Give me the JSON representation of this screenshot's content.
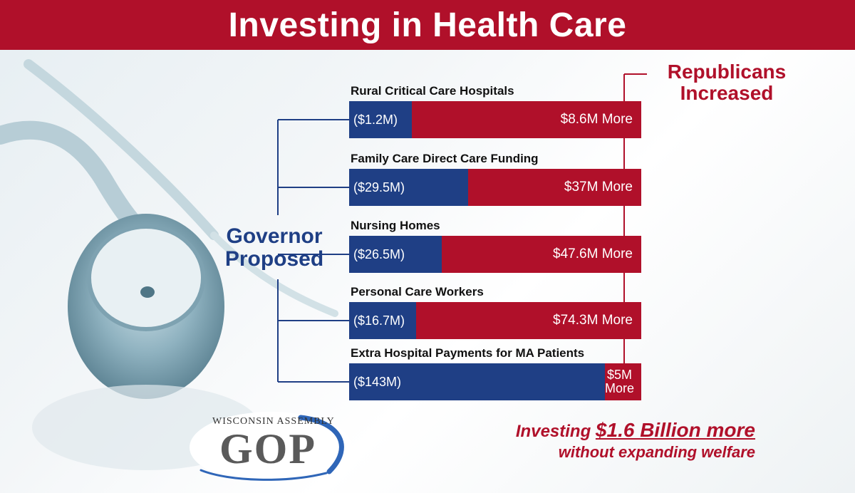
{
  "title": "Investing in Health Care",
  "labels": {
    "governor_line1": "Governor",
    "governor_line2": "Proposed",
    "republicans_line1": "Republicans",
    "republicans_line2": "Increased"
  },
  "colors": {
    "banner": "#b0102a",
    "governor": "#1f3f85",
    "republicans": "#b0102a"
  },
  "chart_data": {
    "type": "bar",
    "orientation": "horizontal",
    "stacked": true,
    "unit": "$M",
    "categories": [
      "Rural Critical Care Hospitals",
      "Family Care Direct Care Funding",
      "Nursing Homes",
      "Personal Care Workers",
      "Extra Hospital Payments for MA Patients"
    ],
    "series": [
      {
        "name": "Governor Proposed",
        "values": [
          1.2,
          29.5,
          26.5,
          16.7,
          143
        ],
        "labels": [
          "($1.2M)",
          "($29.5M)",
          "($26.5M)",
          "($16.7M)",
          "($143M)"
        ]
      },
      {
        "name": "Republicans Increased",
        "values": [
          8.6,
          37,
          47.6,
          74.3,
          5
        ],
        "labels": [
          "$8.6M More",
          "$37M More",
          "$47.6M More",
          "$74.3M More",
          "$5M More"
        ]
      }
    ]
  },
  "footer": {
    "prefix": "Investing ",
    "amount": "$1.6 Billion more",
    "line2": "without expanding welfare"
  },
  "logo": {
    "top_text": "WISCONSIN ASSEMBLY",
    "main_text": "GOP"
  }
}
